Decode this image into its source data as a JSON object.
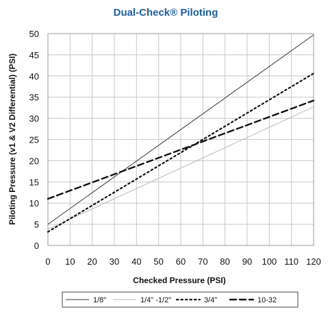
{
  "chart_data": {
    "type": "line",
    "title": "Dual-Check® Piloting",
    "title_color": "#1f5fa0",
    "xlabel": "Checked Pressure (PSI)",
    "ylabel": "Piloting Pressure (v1 & V2 Differential) (PSI)",
    "xlim": [
      0,
      120
    ],
    "ylim": [
      0,
      50
    ],
    "xticks": [
      0,
      10,
      20,
      30,
      40,
      50,
      60,
      70,
      80,
      90,
      100,
      110,
      120
    ],
    "yticks": [
      0,
      5,
      10,
      15,
      20,
      25,
      30,
      35,
      40,
      45,
      50
    ],
    "grid": true,
    "legend_position": "bottom",
    "x": [
      0,
      120
    ],
    "series": [
      {
        "name": "1/8\"",
        "values": [
          5,
          49.7
        ],
        "color": "#333333",
        "style": "solid"
      },
      {
        "name": "1/4\" -1/2\"",
        "values": [
          3.8,
          32.7
        ],
        "color": "#b8b8b8",
        "style": "solid"
      },
      {
        "name": "3/4\"",
        "values": [
          3.2,
          40.6
        ],
        "color": "#111111",
        "style": "dotted"
      },
      {
        "name": "10-32",
        "values": [
          11,
          34.2
        ],
        "color": "#111111",
        "style": "dashed"
      }
    ]
  }
}
